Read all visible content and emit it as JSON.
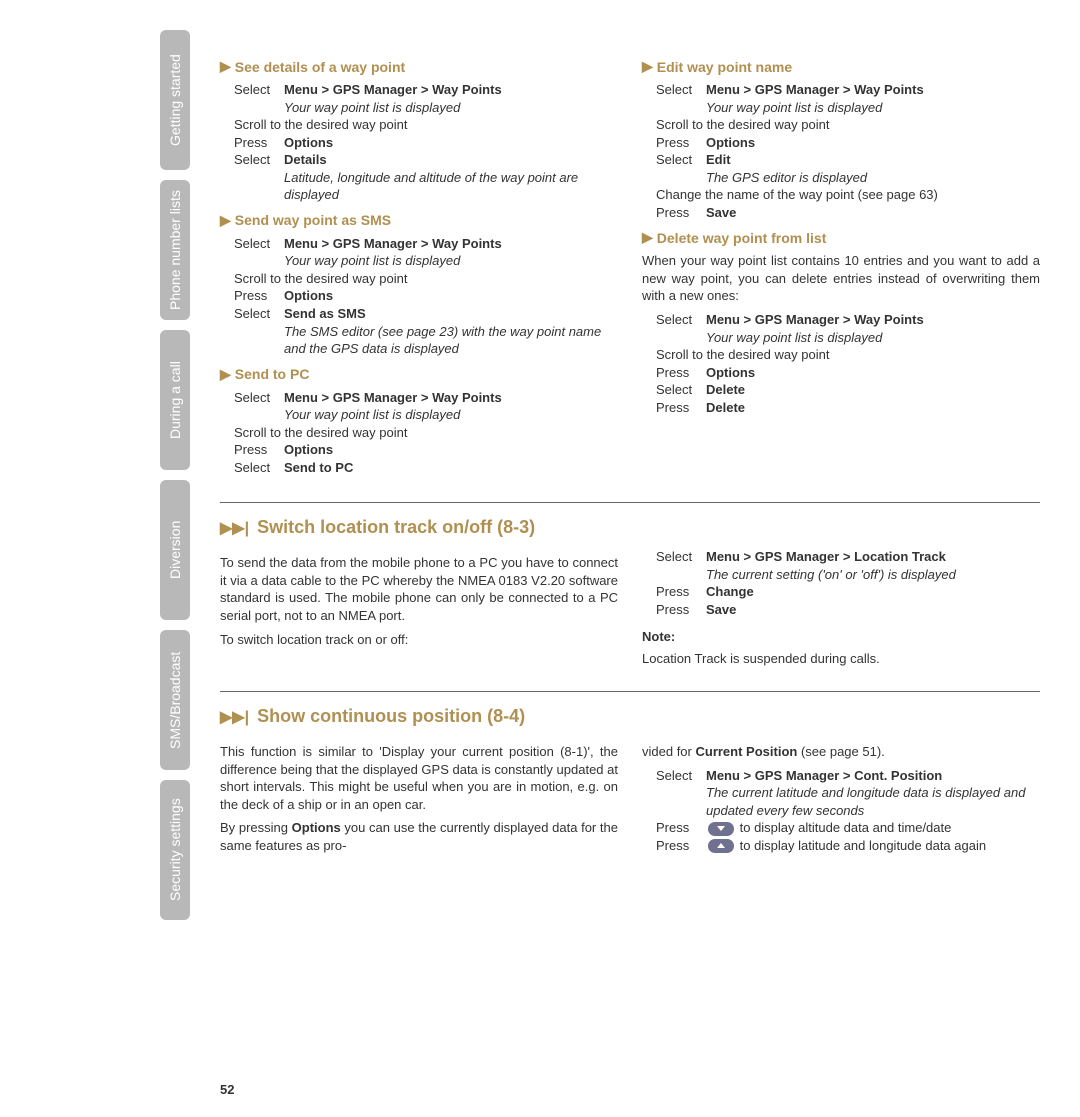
{
  "sidebar": {
    "tabs": [
      "Getting started",
      "Phone number lists",
      "During a call",
      "Diversion",
      "SMS/Broadcast",
      "Security settings"
    ]
  },
  "col_left": {
    "h1": "See details of a way point",
    "s1": {
      "select": "Menu > GPS Manager > Way Points",
      "desc1": "Your way point list is displayed",
      "scroll": "Scroll to the desired way point",
      "press": "Options",
      "select2": "Details",
      "desc2": "Latitude, longitude and altitude of the way point are displayed"
    },
    "h2": "Send way point as SMS",
    "s2": {
      "select": "Menu > GPS Manager > Way Points",
      "desc1": "Your way point list is displayed",
      "scroll": "Scroll to the desired way point",
      "press": "Options",
      "select2": "Send as SMS",
      "desc2": "The SMS editor (see page 23) with the way point name and the GPS data is displayed"
    },
    "h3": "Send to PC",
    "s3": {
      "select": "Menu > GPS Manager > Way Points",
      "desc1": "Your way point list is displayed",
      "scroll": "Scroll to the desired way point",
      "press": "Options",
      "select2": "Send to PC"
    }
  },
  "col_right": {
    "h1": "Edit way point name",
    "s1": {
      "select": "Menu > GPS Manager > Way Points",
      "desc1": "Your way point list is displayed",
      "scroll": "Scroll to the desired way point",
      "press": "Options",
      "select2": "Edit",
      "desc2": "The GPS editor is displayed",
      "change": "Change the name of the way point (see page 63)",
      "press2": "Save"
    },
    "h2": "Delete way point from list",
    "para": "When your way point list contains 10 entries and you want to add a new way point, you can delete entries instead of overwriting them with a new ones:",
    "s2": {
      "select": "Menu > GPS Manager > Way Points",
      "desc1": "Your way point list is displayed",
      "scroll": "Scroll to the desired way point",
      "press": "Options",
      "select2": "Delete",
      "press2": "Delete"
    }
  },
  "sec2": {
    "title": "Switch location track on/off (8-3)",
    "left_para1": "To send the data from the mobile phone to a PC you have to connect it via a data cable to the PC whereby the NMEA 0183 V2.20 software standard is used. The mobile phone can only be connected to a PC serial port, not to an NMEA port.",
    "left_para2": "To switch location track on or off:",
    "right": {
      "select": "Menu > GPS Manager > Location Track",
      "desc": "The current setting ('on' or 'off') is displayed",
      "press1": "Change",
      "press2": "Save"
    },
    "note_label": "Note:",
    "note_text": "Location Track is suspended during calls."
  },
  "sec3": {
    "title": "Show continuous position (8-4)",
    "left_para1": "This function is similar to 'Display your current position (8-1)', the difference being that the displayed GPS data is constantly updated at short intervals. This might be useful when you are in motion, e.g. on the deck of a ship or in an open car.",
    "left_para2a": "By pressing ",
    "left_para2b": "Options",
    "left_para2c": " you can use the currently displayed data for the same features as pro-",
    "right_intro_a": "vided for ",
    "right_intro_b": "Current Position",
    "right_intro_c": " (see page 51).",
    "right": {
      "select": "Menu > GPS Manager > Cont. Position",
      "desc": "The current latitude and longitude data is displayed and updated every few seconds",
      "press1": " to display altitude data and time/date",
      "press2": " to display latitude and longitude data again"
    }
  },
  "labels": {
    "select": "Select",
    "press": "Press",
    "scroll": "Scroll"
  },
  "page_number": "52"
}
